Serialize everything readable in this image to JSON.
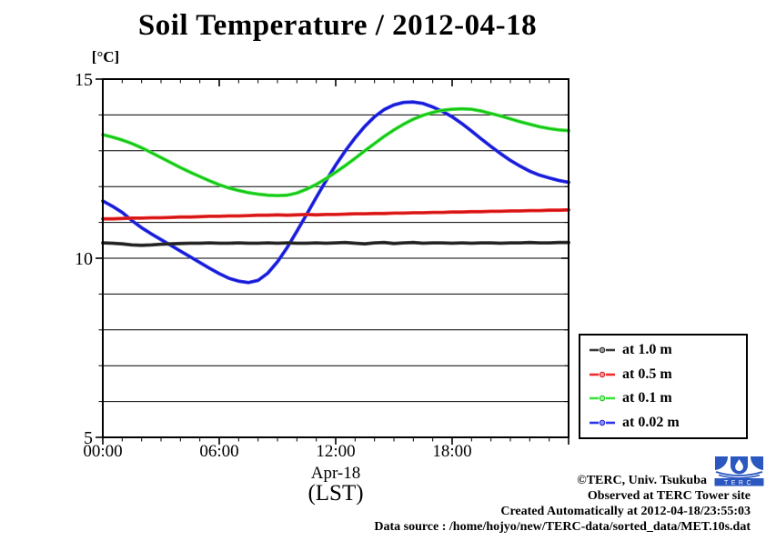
{
  "chart_data": {
    "type": "line",
    "title": "Soil Temperature / 2012-04-18",
    "ylabel": "[°C]",
    "xlabel_date": "Apr-18",
    "xlabel_tz": "(LST)",
    "ylim": [
      5,
      15
    ],
    "xlim_hours": [
      0,
      24
    ],
    "y_major_ticks": [
      15,
      10,
      5
    ],
    "y_grid_step": 1,
    "x_major_tick_hours": [
      0,
      6,
      12,
      18
    ],
    "x_major_tick_labels": [
      "00:00",
      "06:00",
      "12:00",
      "18:00"
    ],
    "x_minor_step_hours": 1,
    "sample_step_hours": 0.5,
    "grid": "horizontal",
    "legend_position": "outside-right-bottom",
    "series": [
      {
        "label": "at 1.0 m",
        "depth_m": 1.0,
        "color": "#3a3a3a",
        "core_color": "#141414",
        "marker_tint": "#9a9a9a",
        "values": [
          10.43,
          10.42,
          10.4,
          10.37,
          10.36,
          10.37,
          10.39,
          10.4,
          10.41,
          10.42,
          10.42,
          10.43,
          10.42,
          10.42,
          10.43,
          10.42,
          10.42,
          10.43,
          10.42,
          10.43,
          10.42,
          10.42,
          10.43,
          10.42,
          10.43,
          10.44,
          10.42,
          10.4,
          10.43,
          10.44,
          10.41,
          10.43,
          10.44,
          10.42,
          10.43,
          10.43,
          10.42,
          10.43,
          10.42,
          10.43,
          10.43,
          10.42,
          10.43,
          10.43,
          10.44,
          10.43,
          10.43,
          10.44,
          10.44
        ]
      },
      {
        "label": "at 0.5 m",
        "depth_m": 0.5,
        "color": "#ee2c2c",
        "core_color": "#c40d0d",
        "marker_tint": "#ff9090",
        "values": [
          11.1,
          11.1,
          11.11,
          11.12,
          11.12,
          11.13,
          11.13,
          11.14,
          11.15,
          11.15,
          11.16,
          11.17,
          11.17,
          11.18,
          11.18,
          11.19,
          11.2,
          11.2,
          11.21,
          11.2,
          11.21,
          11.22,
          11.21,
          11.22,
          11.22,
          11.23,
          11.24,
          11.24,
          11.25,
          11.25,
          11.26,
          11.26,
          11.27,
          11.27,
          11.28,
          11.28,
          11.29,
          11.29,
          11.3,
          11.3,
          11.31,
          11.31,
          11.32,
          11.32,
          11.33,
          11.33,
          11.34,
          11.34,
          11.35
        ]
      },
      {
        "label": "at 0.1 m",
        "depth_m": 0.1,
        "color": "#3ae23a",
        "core_color": "#0db80d",
        "marker_tint": "#90ff90",
        "values": [
          13.45,
          13.38,
          13.3,
          13.2,
          13.08,
          12.95,
          12.81,
          12.67,
          12.53,
          12.4,
          12.28,
          12.16,
          12.05,
          11.96,
          11.89,
          11.83,
          11.79,
          11.76,
          11.75,
          11.76,
          11.82,
          11.93,
          12.06,
          12.22,
          12.4,
          12.59,
          12.79,
          13.0,
          13.2,
          13.4,
          13.58,
          13.74,
          13.88,
          13.99,
          14.07,
          14.13,
          14.16,
          14.17,
          14.16,
          14.11,
          14.04,
          13.97,
          13.89,
          13.81,
          13.74,
          13.67,
          13.62,
          13.58,
          13.56
        ]
      },
      {
        "label": "at 0.02 m",
        "depth_m": 0.02,
        "color": "#2e35ee",
        "core_color": "#1111c4",
        "marker_tint": "#8a92ff",
        "values": [
          11.6,
          11.45,
          11.28,
          11.05,
          10.85,
          10.68,
          10.52,
          10.36,
          10.2,
          10.04,
          9.88,
          9.72,
          9.57,
          9.44,
          9.36,
          9.32,
          9.38,
          9.58,
          9.9,
          10.3,
          10.75,
          11.22,
          11.7,
          12.16,
          12.6,
          13.0,
          13.36,
          13.68,
          13.95,
          14.15,
          14.28,
          14.35,
          14.36,
          14.32,
          14.22,
          14.1,
          13.95,
          13.76,
          13.55,
          13.33,
          13.12,
          12.92,
          12.73,
          12.57,
          12.43,
          12.32,
          12.24,
          12.17,
          12.12
        ]
      }
    ]
  },
  "annotations": {
    "copyright": "©TERC, Univ. Tsukuba",
    "observed": "Observed at TERC Tower site",
    "created": "Created Automatically at 2012-04-18/23:55:03",
    "data_source": "Data source : /home/hojyo/new/TERC-data/sorted_data/MET.10s.dat"
  },
  "logo": {
    "text": "TERC",
    "color": "#2b57c0"
  }
}
